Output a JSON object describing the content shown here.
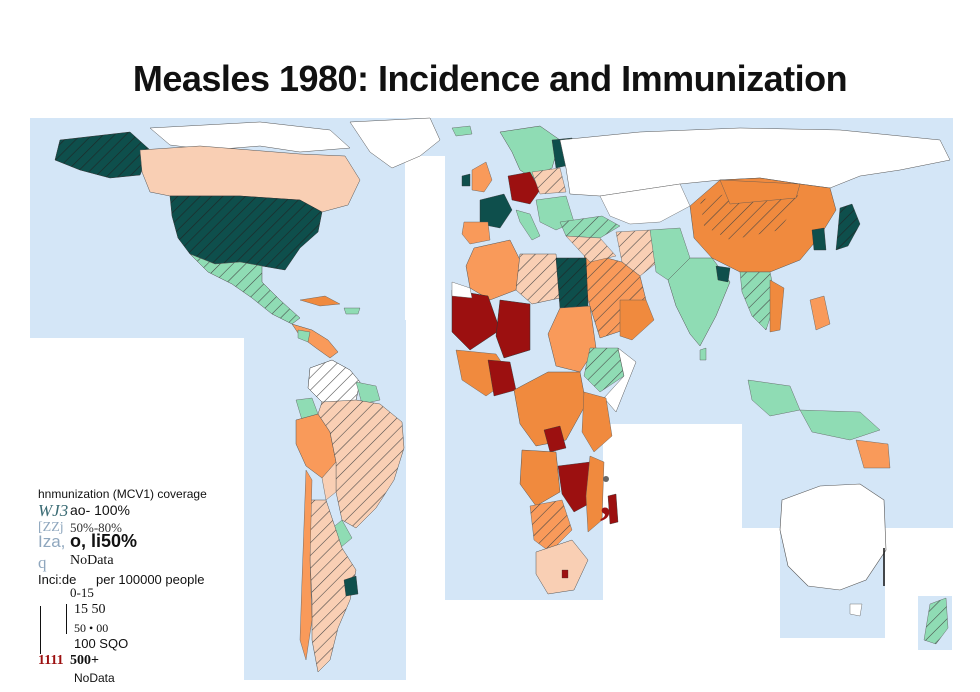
{
  "title": "Measles 1980: Incidence and Immunization",
  "colors": {
    "ocean": "#d4e6f7",
    "no_data": "#ffffff",
    "inc_0_15": "#f9cfb4",
    "inc_15_50": "#f99a5a",
    "inc_50_100": "#f08a3e",
    "inc_100_500": "#ee7f30",
    "inc_500_plus": "#9c1010",
    "cov_80_100": "#0e4f4c",
    "cov_50_80": "#8fdcb4",
    "cov_0_50": "#9fb3c6"
  },
  "legend": {
    "coverage_title": "hnmunization  (MCV1) coverage",
    "cov_80_100_swatch": "WJ3",
    "cov_80_100_label": "ao- 100%",
    "cov_50_80_swatch": "[ZZj",
    "cov_50_80_label": "50%-80%",
    "cov_0_50_swatch": "Iza,",
    "cov_0_50_label": "o, li50%",
    "cov_nodata_swatch": "q",
    "cov_nodata_label": "NoData",
    "incidence_title": "Inci:de",
    "incidence_suffix": "per 100000 people",
    "inc_0_15_label": "0-15",
    "inc_15_50_label": "15 50",
    "inc_50_100_label": "50 • 00",
    "inc_100_500_label": "100 SQO",
    "inc_500_swatch": "1111",
    "inc_500_label": "500+",
    "inc_nodata_label": "NoData"
  },
  "stray_marks": {
    "comma": ","
  }
}
